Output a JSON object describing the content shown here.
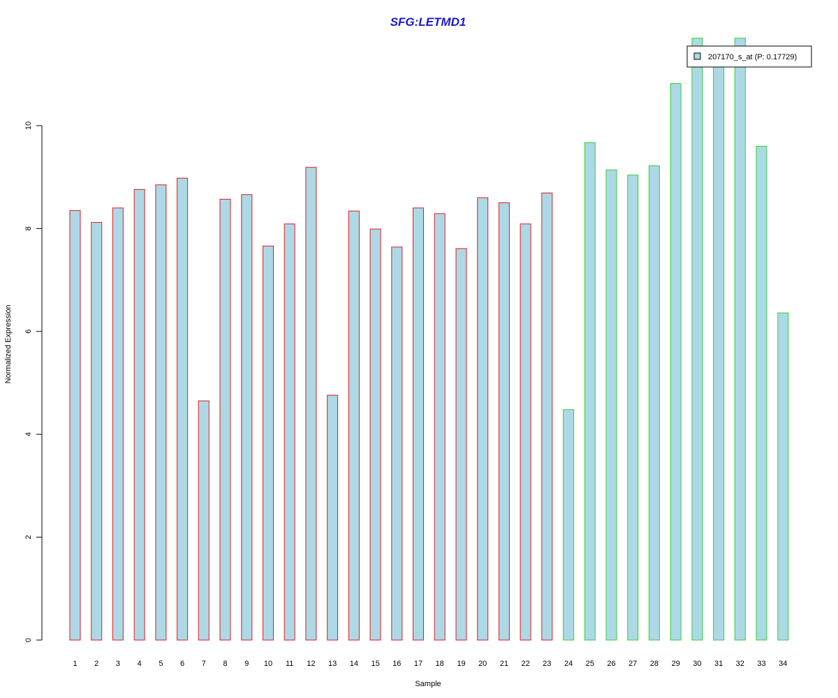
{
  "chart_data": {
    "type": "bar",
    "title": "SFG:LETMD1",
    "xlabel": "Sample",
    "ylabel": "Normalized Expression",
    "ylim": [
      0,
      11.7
    ],
    "y_ticks": [
      0,
      2,
      4,
      6,
      8,
      10
    ],
    "categories": [
      "1",
      "2",
      "3",
      "4",
      "5",
      "6",
      "7",
      "8",
      "9",
      "10",
      "11",
      "12",
      "13",
      "14",
      "15",
      "16",
      "17",
      "18",
      "19",
      "20",
      "21",
      "22",
      "23",
      "24",
      "25",
      "26",
      "27",
      "28",
      "29",
      "30",
      "31",
      "32",
      "33",
      "34"
    ],
    "values": [
      8.35,
      8.12,
      8.4,
      8.76,
      8.85,
      8.98,
      4.65,
      8.57,
      8.66,
      7.66,
      8.09,
      9.19,
      4.76,
      8.34,
      7.99,
      7.64,
      8.4,
      8.29,
      7.61,
      8.6,
      8.5,
      8.09,
      8.69,
      4.48,
      9.67,
      9.14,
      9.04,
      9.22,
      10.82,
      11.7,
      11.15,
      11.7,
      9.6,
      6.36
    ],
    "group_sizes": [
      23,
      11
    ],
    "group_border_colors": [
      "#e41a1c",
      "#2ed42e"
    ],
    "bar_fill": "#add8e6",
    "legend": {
      "position": "top-right",
      "label": "207170_s_at (P: 0.17729)"
    },
    "colors": {
      "title": "#1a1acd",
      "axis": "#000000",
      "legend_border": "#000000"
    },
    "grid": false
  }
}
